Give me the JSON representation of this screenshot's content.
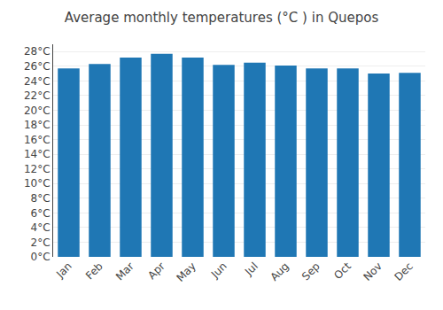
{
  "chart_data": {
    "type": "bar",
    "title": "Average monthly temperatures (°C ) in Quepos",
    "categories": [
      "Jan",
      "Feb",
      "Mar",
      "Apr",
      "May",
      "Jun",
      "Jul",
      "Aug",
      "Sep",
      "Oct",
      "Nov",
      "Dec"
    ],
    "values": [
      25.7,
      26.3,
      27.2,
      27.7,
      27.2,
      26.2,
      26.5,
      26.1,
      25.7,
      25.7,
      25.0,
      25.1
    ],
    "ylim": [
      0,
      29
    ],
    "yticks": [
      {
        "value": 0,
        "label": "0°C"
      },
      {
        "value": 2,
        "label": "2°C"
      },
      {
        "value": 4,
        "label": "4°C"
      },
      {
        "value": 6,
        "label": "6°C"
      },
      {
        "value": 8,
        "label": "8°C"
      },
      {
        "value": 10,
        "label": "10°C"
      },
      {
        "value": 12,
        "label": "12°C"
      },
      {
        "value": 14,
        "label": "14°C"
      },
      {
        "value": 16,
        "label": "16°C"
      },
      {
        "value": 18,
        "label": "18°C"
      },
      {
        "value": 20,
        "label": "20°C"
      },
      {
        "value": 22,
        "label": "22°C"
      },
      {
        "value": 24,
        "label": "24°C"
      },
      {
        "value": 26,
        "label": "26°C"
      },
      {
        "value": 28,
        "label": "28°C"
      }
    ],
    "grid": true
  }
}
